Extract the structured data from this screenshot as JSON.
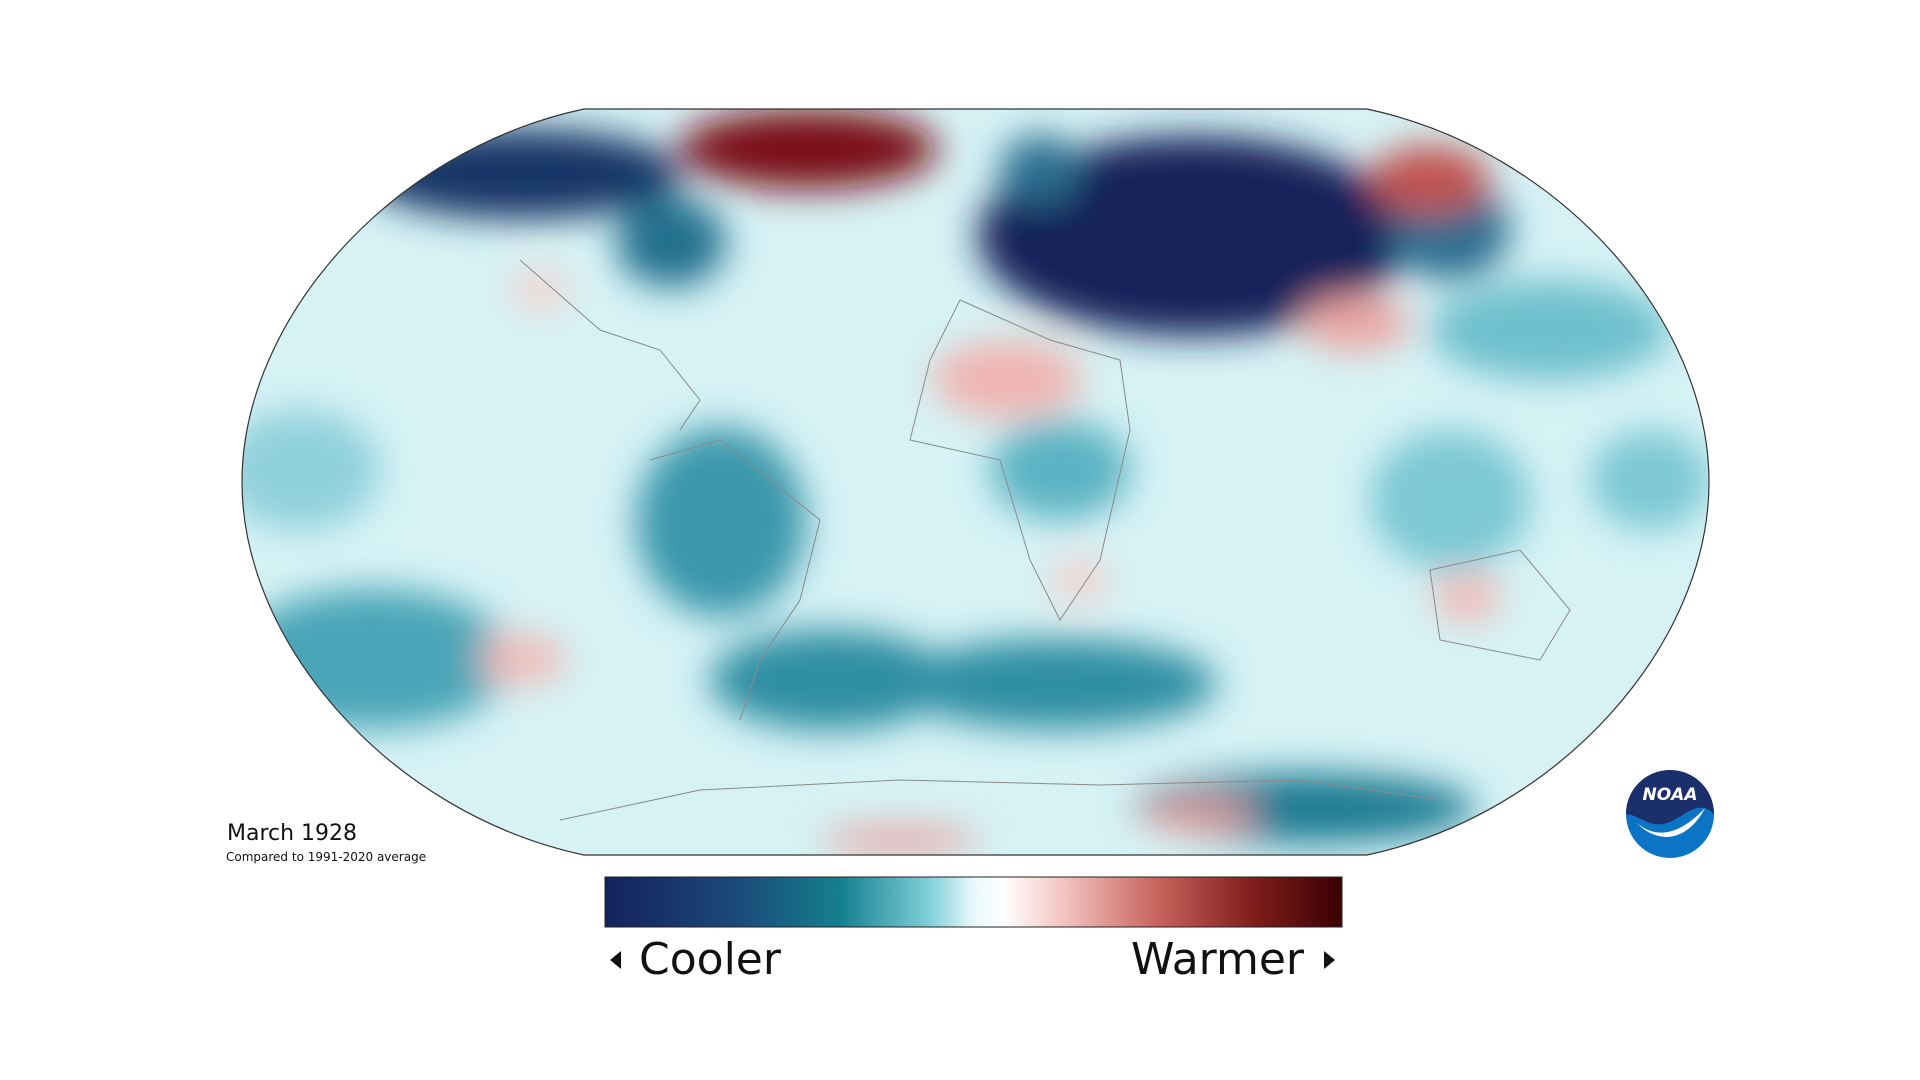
{
  "title": "March 1928",
  "subtitle": "Compared to 1991-2020 average",
  "legend": {
    "low_label": "Cooler",
    "high_label": "Warmer"
  },
  "logo": "NOAA"
}
